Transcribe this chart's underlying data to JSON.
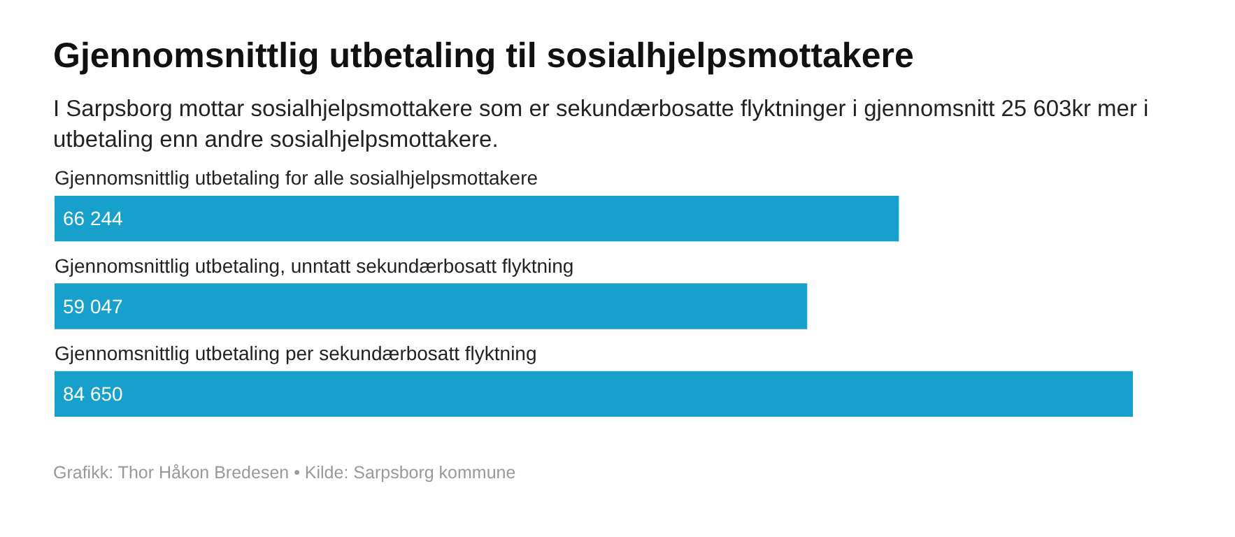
{
  "chart_data": {
    "type": "bar",
    "orientation": "horizontal",
    "title": "Gjennomsnittlig utbetaling til sosialhjelpsmottakere",
    "subtitle": "I Sarpsborg mottar sosialhjelpsmottakere som er sekundærbosatte flyktninger i gjennomsnitt 25 603kr mer i utbetaling enn andre sosialhjelpsmottakere.",
    "categories": [
      "Gjennomsnittlig utbetaling for alle sosialhjelpsmottakere",
      "Gjennomsnittlig utbetaling, unntatt sekundærbosatt flyktning",
      "Gjennomsnittlig utbetaling per sekundærbosatt flyktning"
    ],
    "values": [
      66244,
      59047,
      84650
    ],
    "value_labels": [
      "66 244",
      "59 047",
      "84 650"
    ],
    "color": "#18a0cc",
    "annotations": [
      "Grafikk: Thor Håkon Bredesen • Kilde: Sarpsborg kommune"
    ]
  }
}
